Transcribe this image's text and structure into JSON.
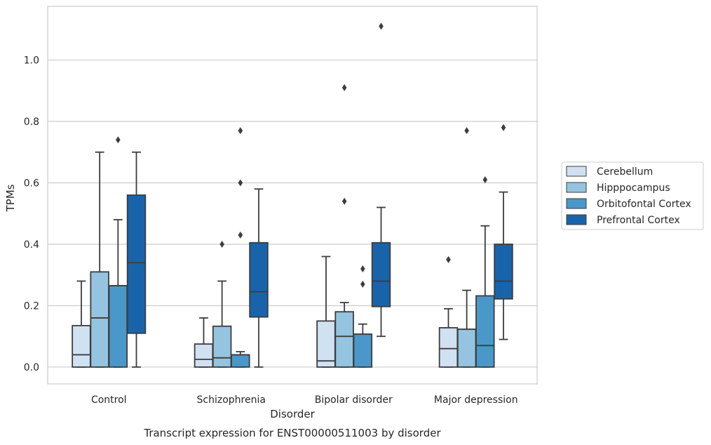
{
  "chart_data": {
    "type": "box",
    "title": "Transcript expression for ENST00000511003 by disorder",
    "xlabel": "Disorder",
    "ylabel": "TPMs",
    "ylim": [
      -0.055,
      1.175
    ],
    "yticks": [
      "0.0",
      "0.2",
      "0.4",
      "0.6",
      "0.8",
      "1.0"
    ],
    "grid": "horizontal",
    "legend_position": "right",
    "categories": [
      "Control",
      "Schizophrenia",
      "Bipolar disorder",
      "Major depression"
    ],
    "series": [
      {
        "name": "Cerebellum",
        "color": "#d0e1f2",
        "boxes": [
          {
            "q1": 0.0,
            "median": 0.04,
            "q3": 0.135,
            "whisker_low": 0.0,
            "whisker_high": 0.28,
            "outliers": []
          },
          {
            "q1": 0.0,
            "median": 0.025,
            "q3": 0.075,
            "whisker_low": 0.0,
            "whisker_high": 0.16,
            "outliers": []
          },
          {
            "q1": 0.0,
            "median": 0.02,
            "q3": 0.15,
            "whisker_low": 0.0,
            "whisker_high": 0.36,
            "outliers": []
          },
          {
            "q1": 0.0,
            "median": 0.06,
            "q3": 0.128,
            "whisker_low": 0.0,
            "whisker_high": 0.19,
            "outliers": [
              0.35
            ]
          }
        ]
      },
      {
        "name": "Hipppocampus",
        "color": "#94c4df",
        "boxes": [
          {
            "q1": 0.0,
            "median": 0.16,
            "q3": 0.31,
            "whisker_low": 0.0,
            "whisker_high": 0.7,
            "outliers": []
          },
          {
            "q1": 0.0,
            "median": 0.03,
            "q3": 0.133,
            "whisker_low": 0.0,
            "whisker_high": 0.28,
            "outliers": [
              0.4
            ]
          },
          {
            "q1": 0.0,
            "median": 0.1,
            "q3": 0.18,
            "whisker_low": 0.0,
            "whisker_high": 0.21,
            "outliers": [
              0.54,
              0.91
            ]
          },
          {
            "q1": 0.0,
            "median": 0.123,
            "q3": 0.123,
            "whisker_low": 0.0,
            "whisker_high": 0.25,
            "outliers": [
              0.77
            ]
          }
        ]
      },
      {
        "name": "Orbitofontal Cortex",
        "color": "#4a98c9",
        "boxes": [
          {
            "q1": 0.0,
            "median": 0.265,
            "q3": 0.265,
            "whisker_low": 0.0,
            "whisker_high": 0.48,
            "outliers": [
              0.74
            ]
          },
          {
            "q1": 0.0,
            "median": 0.04,
            "q3": 0.04,
            "whisker_low": 0.0,
            "whisker_high": 0.05,
            "outliers": [
              0.43,
              0.6,
              0.77
            ]
          },
          {
            "q1": 0.0,
            "median": 0.107,
            "q3": 0.107,
            "whisker_low": 0.0,
            "whisker_high": 0.14,
            "outliers": [
              0.27,
              0.32
            ]
          },
          {
            "q1": 0.0,
            "median": 0.07,
            "q3": 0.232,
            "whisker_low": 0.0,
            "whisker_high": 0.46,
            "outliers": [
              0.61
            ]
          }
        ]
      },
      {
        "name": "Prefrontal Cortex",
        "color": "#1764ab",
        "boxes": [
          {
            "q1": 0.11,
            "median": 0.34,
            "q3": 0.56,
            "whisker_low": 0.0,
            "whisker_high": 0.7,
            "outliers": []
          },
          {
            "q1": 0.163,
            "median": 0.245,
            "q3": 0.405,
            "whisker_low": 0.0,
            "whisker_high": 0.58,
            "outliers": []
          },
          {
            "q1": 0.197,
            "median": 0.28,
            "q3": 0.405,
            "whisker_low": 0.1,
            "whisker_high": 0.52,
            "outliers": [
              1.11
            ]
          },
          {
            "q1": 0.222,
            "median": 0.28,
            "q3": 0.4,
            "whisker_low": 0.09,
            "whisker_high": 0.57,
            "outliers": [
              0.78
            ]
          }
        ]
      }
    ]
  }
}
